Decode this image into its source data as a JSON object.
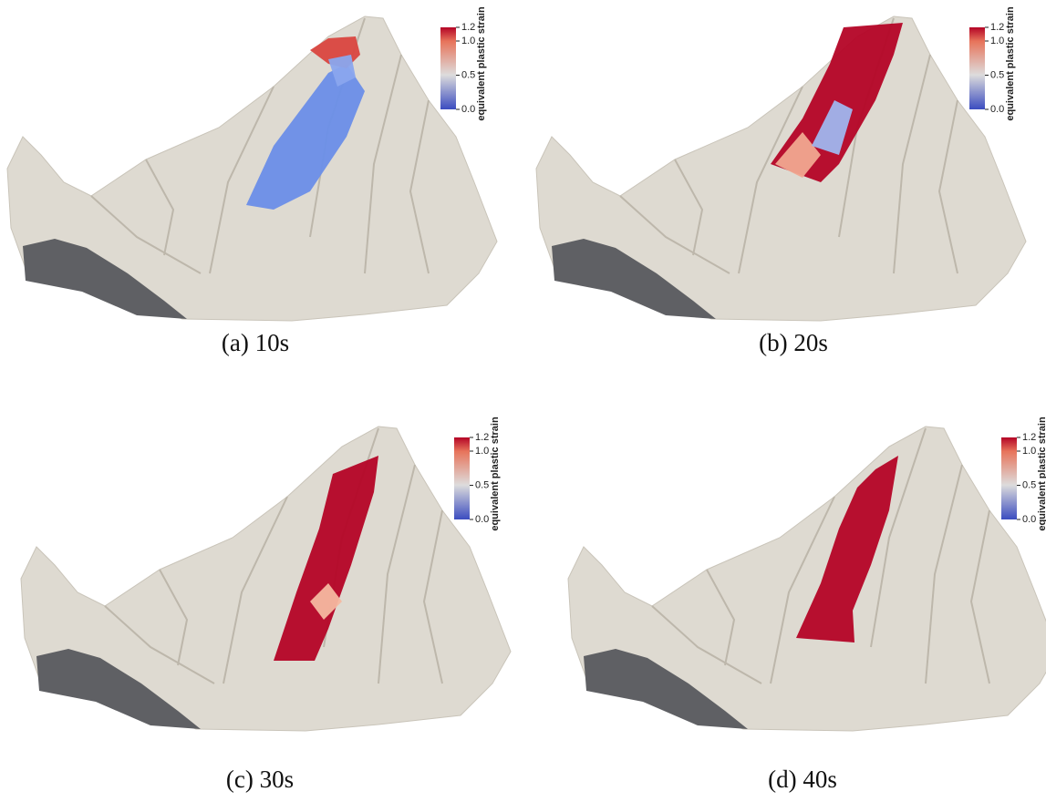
{
  "panels": [
    {
      "caption": "(a) 10s",
      "colorbar": {
        "label": "equivalent plastic strain",
        "range": [
          0,
          1.2
        ],
        "ticks": [
          {
            "value": 0,
            "label": "0.0"
          },
          {
            "value": 0.5,
            "label": "0.5"
          },
          {
            "value": 1,
            "label": "1.0"
          },
          {
            "value": 1.2,
            "label": "1.2"
          }
        ]
      }
    },
    {
      "caption": "(b) 20s",
      "colorbar": {
        "label": "equivalent plastic strain",
        "range": [
          0,
          1.2
        ],
        "ticks": [
          {
            "value": 0,
            "label": "0.0"
          },
          {
            "value": 0.5,
            "label": "0.5"
          },
          {
            "value": 1,
            "label": "1.0"
          },
          {
            "value": 1.2,
            "label": "1.2"
          }
        ]
      }
    },
    {
      "caption": "(c) 30s",
      "colorbar": {
        "label": "equivalent plastic strain",
        "range": [
          0,
          1.2
        ],
        "ticks": [
          {
            "value": 0,
            "label": "0.0"
          },
          {
            "value": 0.5,
            "label": "0.5"
          },
          {
            "value": 1,
            "label": "1.0"
          },
          {
            "value": 1.2,
            "label": "1.2"
          }
        ]
      }
    },
    {
      "caption": "(d) 40s",
      "colorbar": {
        "label": "equivalent plastic strain",
        "range": [
          0,
          1.2
        ],
        "ticks": [
          {
            "value": 0,
            "label": "0.0"
          },
          {
            "value": 0.5,
            "label": "0.5"
          },
          {
            "value": 1,
            "label": "1.0"
          },
          {
            "value": 1.2,
            "label": "1.2"
          }
        ]
      }
    }
  ]
}
